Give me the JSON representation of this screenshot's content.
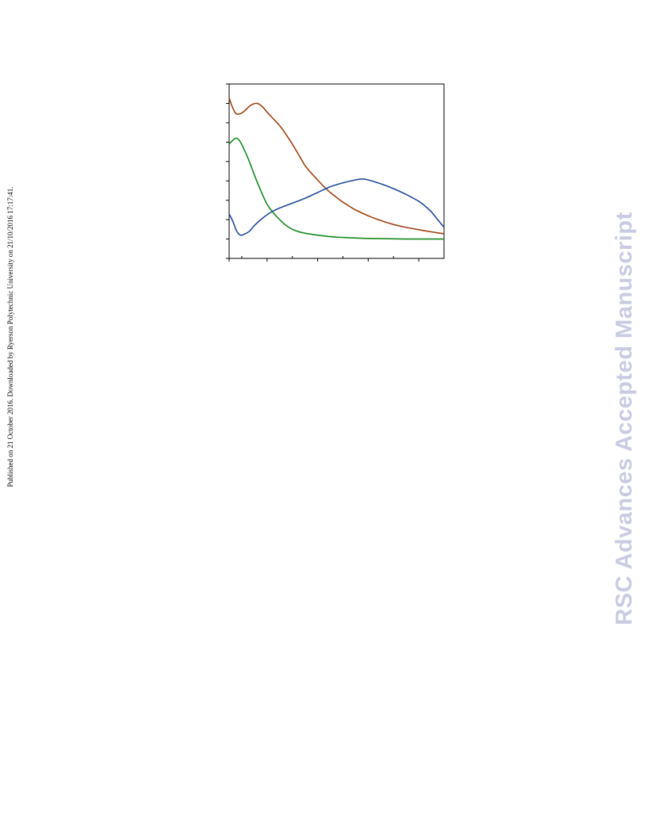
{
  "side_note": "Published on 21 October 2016. Downloaded by Ryerson Polytechnic University on 21/10/2016 17:17:41.",
  "watermark": "RSC Advances Accepted Manuscript",
  "chart_data": {
    "type": "line",
    "title": "",
    "xlabel": "",
    "ylabel": "",
    "xlim": [
      0,
      17
    ],
    "ylim": [
      0,
      9
    ],
    "grid": false,
    "legend": "none",
    "x_major_ticks": [
      0,
      3,
      7,
      11,
      15
    ],
    "x_minor_ticks": [
      1,
      5,
      9,
      13,
      17
    ],
    "y_ticks": [
      0,
      1,
      2,
      3,
      4,
      5,
      6,
      7,
      8,
      9
    ],
    "series": [
      {
        "color": "#a0400f",
        "x": [
          0,
          0.2,
          0.5,
          0.8,
          1.2,
          1.7,
          2.2,
          2.6,
          3.0,
          3.5,
          4.0,
          4.5,
          5.0,
          5.5,
          6.0,
          6.5,
          7.0,
          7.5,
          8.0,
          8.5,
          9.0,
          9.5,
          10.0,
          11.0,
          12.0,
          13.0,
          14.0,
          15.0,
          16.0,
          17.0
        ],
        "y": [
          8.3,
          7.9,
          7.5,
          7.45,
          7.6,
          7.9,
          8.0,
          7.85,
          7.55,
          7.2,
          6.85,
          6.4,
          5.9,
          5.35,
          4.8,
          4.4,
          4.05,
          3.7,
          3.4,
          3.15,
          2.9,
          2.7,
          2.5,
          2.2,
          1.95,
          1.75,
          1.6,
          1.48,
          1.37,
          1.27
        ]
      },
      {
        "color": "#158a1e",
        "x": [
          0,
          0.3,
          0.6,
          0.9,
          1.2,
          1.6,
          2.0,
          2.5,
          3.0,
          3.5,
          4.0,
          4.5,
          5.0,
          5.5,
          6.0,
          7.0,
          8.0,
          9.0,
          10.0,
          11.0,
          12.0,
          13.0,
          14.0,
          15.0,
          16.0,
          17.0
        ],
        "y": [
          5.9,
          6.1,
          6.2,
          6.0,
          5.6,
          5.0,
          4.3,
          3.5,
          2.8,
          2.35,
          2.0,
          1.7,
          1.5,
          1.38,
          1.3,
          1.2,
          1.12,
          1.08,
          1.05,
          1.03,
          1.02,
          1.01,
          1.0,
          1.0,
          1.0,
          1.0
        ]
      },
      {
        "color": "#1f4a9a",
        "x": [
          0,
          0.3,
          0.6,
          0.9,
          1.2,
          1.6,
          2.0,
          2.5,
          3.0,
          3.5,
          4.0,
          5.0,
          6.0,
          7.0,
          8.0,
          9.0,
          10.0,
          10.5,
          11.0,
          12.0,
          13.0,
          14.0,
          15.0,
          15.5,
          16.0,
          16.5,
          17.0
        ],
        "y": [
          2.3,
          1.9,
          1.4,
          1.2,
          1.25,
          1.4,
          1.7,
          2.0,
          2.25,
          2.45,
          2.6,
          2.85,
          3.1,
          3.4,
          3.7,
          3.9,
          4.05,
          4.1,
          4.05,
          3.85,
          3.6,
          3.3,
          2.95,
          2.7,
          2.4,
          2.0,
          1.6
        ]
      }
    ]
  }
}
